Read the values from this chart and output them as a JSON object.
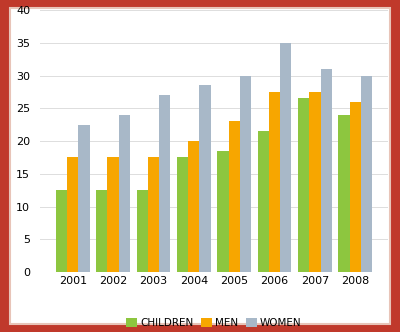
{
  "years": [
    "2001",
    "2002",
    "2003",
    "2004",
    "2005",
    "2006",
    "2007",
    "2008"
  ],
  "children": [
    12.5,
    12.5,
    12.5,
    17.5,
    18.5,
    21.5,
    26.5,
    24.0
  ],
  "men": [
    17.5,
    17.5,
    17.5,
    20.0,
    23.0,
    27.5,
    27.5,
    26.0
  ],
  "women": [
    22.5,
    24.0,
    27.0,
    28.5,
    30.0,
    35.0,
    31.0,
    30.0
  ],
  "colors": {
    "children": "#8DC63F",
    "men": "#F7A600",
    "women": "#A8B8C8"
  },
  "legend_labels": [
    "CHILDREN",
    "MEN",
    "WOMEN"
  ],
  "ylim": [
    0,
    40
  ],
  "yticks": [
    0,
    5,
    10,
    15,
    20,
    25,
    30,
    35,
    40
  ],
  "bar_width": 0.28,
  "background_color": "#FFFFFF",
  "plot_bg_color": "#FFFFFF",
  "outer_border_color": "#C0392B",
  "inner_border_color": "#E8C4B8",
  "grid_color": "#DDDDDD"
}
